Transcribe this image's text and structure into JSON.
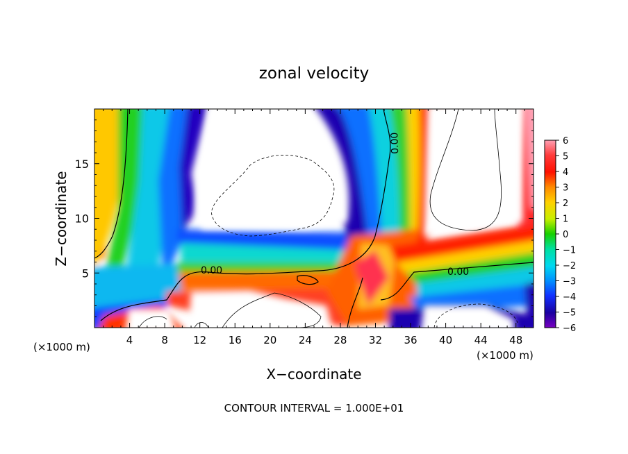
{
  "chart_data": {
    "type": "heatmap",
    "title": "zonal velocity",
    "xlabel": "X−coordinate",
    "ylabel": "Z−coordinate",
    "x_units": "(×1000 m)",
    "x_units_right": "(×1000 m)",
    "xlim": [
      0,
      50
    ],
    "ylim": [
      0,
      20
    ],
    "x_ticks": [
      "4",
      "8",
      "12",
      "16",
      "20",
      "24",
      "28",
      "32",
      "36",
      "40",
      "44",
      "48"
    ],
    "y_ticks": [
      "5",
      "10",
      "15"
    ],
    "colorbar": {
      "range": [
        -6,
        6
      ],
      "ticks": [
        "6",
        "5",
        "4",
        "3",
        "2",
        "1",
        "0",
        "−1",
        "−2",
        "−3",
        "−4",
        "−5",
        "−6"
      ],
      "saturated_regions": "white (values beyond ±6)"
    },
    "contour_labels": [
      "0.00",
      "0.00",
      "0.00"
    ],
    "footer": "CONTOUR INTERVAL = 1.000E+01"
  }
}
